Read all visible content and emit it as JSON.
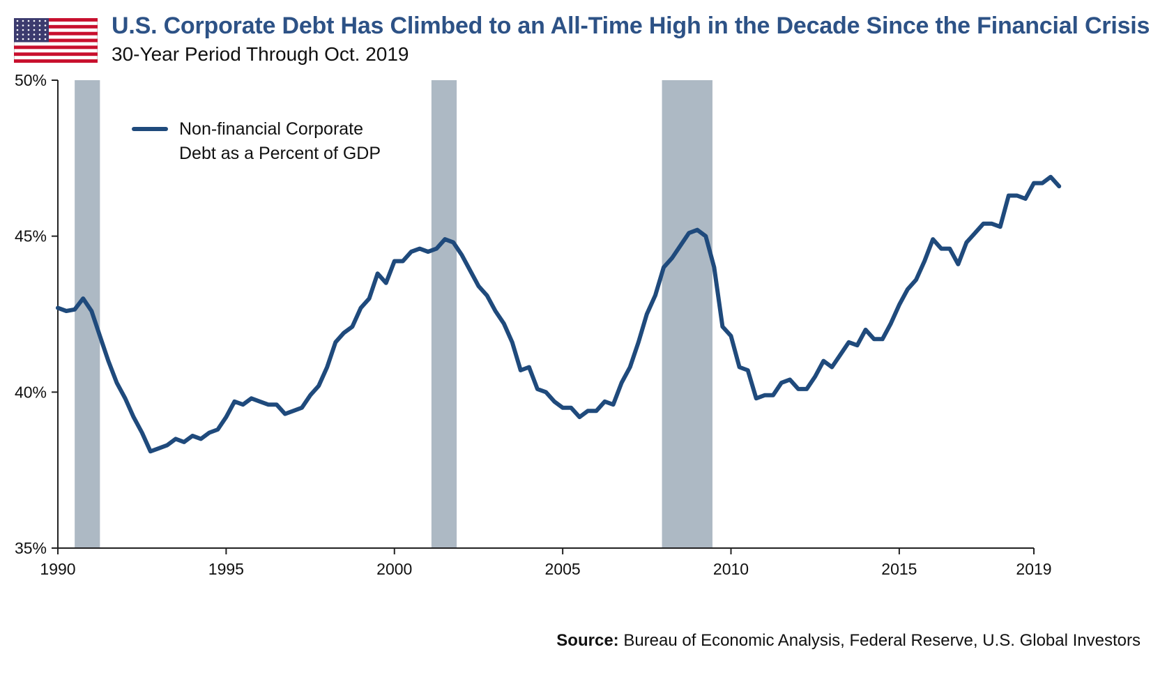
{
  "header": {
    "title": "U.S. Corporate Debt Has Climbed to an All-Time High in the Decade Since the Financial Crisis",
    "subtitle": "30-Year Period Through Oct. 2019"
  },
  "footer": {
    "source_label": "Source:",
    "source_text": "Bureau of Economic Analysis, Federal Reserve, U.S. Global Investors"
  },
  "colors": {
    "line": "#1f4a7c",
    "recession": "#adb9c4",
    "title": "#2d5286",
    "flag_red": "#c8102e",
    "flag_blue": "#3c3b6e"
  },
  "chart_data": {
    "type": "line",
    "xlim": [
      1990,
      2019
    ],
    "ylim": [
      35,
      50
    ],
    "x_ticks": [
      1990,
      1995,
      2000,
      2005,
      2010,
      2015,
      2019
    ],
    "x_tick_labels": [
      "1990",
      "1995",
      "2000",
      "2005",
      "2010",
      "2015",
      "2019"
    ],
    "y_ticks": [
      35,
      40,
      45,
      50
    ],
    "y_tick_labels": [
      "35%",
      "40%",
      "45%",
      "50%"
    ],
    "legend": {
      "placement": "top-left",
      "lines": [
        "Non-financial Corporate",
        "Debt as a Percent of GDP"
      ]
    },
    "recessions": [
      [
        1990.5,
        1991.25
      ],
      [
        2001.1,
        2001.85
      ],
      [
        2007.95,
        2009.45
      ]
    ],
    "series": [
      {
        "values": [
          [
            1990.0,
            42.7
          ],
          [
            1990.25,
            42.6
          ],
          [
            1990.5,
            42.65
          ],
          [
            1990.75,
            43.0
          ],
          [
            1991.0,
            42.6
          ],
          [
            1991.25,
            41.8
          ],
          [
            1991.5,
            41.0
          ],
          [
            1991.75,
            40.3
          ],
          [
            1992.0,
            39.8
          ],
          [
            1992.25,
            39.2
          ],
          [
            1992.5,
            38.7
          ],
          [
            1992.75,
            38.1
          ],
          [
            1993.0,
            38.2
          ],
          [
            1993.25,
            38.3
          ],
          [
            1993.5,
            38.5
          ],
          [
            1993.75,
            38.4
          ],
          [
            1994.0,
            38.6
          ],
          [
            1994.25,
            38.5
          ],
          [
            1994.5,
            38.7
          ],
          [
            1994.75,
            38.8
          ],
          [
            1995.0,
            39.2
          ],
          [
            1995.25,
            39.7
          ],
          [
            1995.5,
            39.6
          ],
          [
            1995.75,
            39.8
          ],
          [
            1996.0,
            39.7
          ],
          [
            1996.25,
            39.6
          ],
          [
            1996.5,
            39.6
          ],
          [
            1996.75,
            39.3
          ],
          [
            1997.0,
            39.4
          ],
          [
            1997.25,
            39.5
          ],
          [
            1997.5,
            39.9
          ],
          [
            1997.75,
            40.2
          ],
          [
            1998.0,
            40.8
          ],
          [
            1998.25,
            41.6
          ],
          [
            1998.5,
            41.9
          ],
          [
            1998.75,
            42.1
          ],
          [
            1999.0,
            42.7
          ],
          [
            1999.25,
            43.0
          ],
          [
            1999.5,
            43.8
          ],
          [
            1999.75,
            43.5
          ],
          [
            2000.0,
            44.2
          ],
          [
            2000.25,
            44.2
          ],
          [
            2000.5,
            44.5
          ],
          [
            2000.75,
            44.6
          ],
          [
            2001.0,
            44.5
          ],
          [
            2001.25,
            44.6
          ],
          [
            2001.5,
            44.9
          ],
          [
            2001.75,
            44.8
          ],
          [
            2002.0,
            44.4
          ],
          [
            2002.25,
            43.9
          ],
          [
            2002.5,
            43.4
          ],
          [
            2002.75,
            43.1
          ],
          [
            2003.0,
            42.6
          ],
          [
            2003.25,
            42.2
          ],
          [
            2003.5,
            41.6
          ],
          [
            2003.75,
            40.7
          ],
          [
            2004.0,
            40.8
          ],
          [
            2004.25,
            40.1
          ],
          [
            2004.5,
            40.0
          ],
          [
            2004.75,
            39.7
          ],
          [
            2005.0,
            39.5
          ],
          [
            2005.25,
            39.5
          ],
          [
            2005.5,
            39.2
          ],
          [
            2005.75,
            39.4
          ],
          [
            2006.0,
            39.4
          ],
          [
            2006.25,
            39.7
          ],
          [
            2006.5,
            39.6
          ],
          [
            2006.75,
            40.3
          ],
          [
            2007.0,
            40.8
          ],
          [
            2007.25,
            41.6
          ],
          [
            2007.5,
            42.5
          ],
          [
            2007.75,
            43.1
          ],
          [
            2008.0,
            44.0
          ],
          [
            2008.25,
            44.3
          ],
          [
            2008.5,
            44.7
          ],
          [
            2008.75,
            45.1
          ],
          [
            2009.0,
            45.2
          ],
          [
            2009.25,
            45.0
          ],
          [
            2009.5,
            44.0
          ],
          [
            2009.75,
            42.1
          ],
          [
            2010.0,
            41.8
          ],
          [
            2010.25,
            40.8
          ],
          [
            2010.5,
            40.7
          ],
          [
            2010.75,
            39.8
          ],
          [
            2011.0,
            39.9
          ],
          [
            2011.25,
            39.9
          ],
          [
            2011.5,
            40.3
          ],
          [
            2011.75,
            40.4
          ],
          [
            2012.0,
            40.1
          ],
          [
            2012.25,
            40.1
          ],
          [
            2012.5,
            40.5
          ],
          [
            2012.75,
            41.0
          ],
          [
            2013.0,
            40.8
          ],
          [
            2013.25,
            41.2
          ],
          [
            2013.5,
            41.6
          ],
          [
            2013.75,
            41.5
          ],
          [
            2014.0,
            42.0
          ],
          [
            2014.25,
            41.7
          ],
          [
            2014.5,
            41.7
          ],
          [
            2014.75,
            42.2
          ],
          [
            2015.0,
            42.8
          ],
          [
            2015.25,
            43.3
          ],
          [
            2015.5,
            43.6
          ],
          [
            2015.75,
            44.2
          ],
          [
            2016.0,
            44.9
          ],
          [
            2016.25,
            44.6
          ],
          [
            2016.5,
            44.6
          ],
          [
            2016.75,
            44.1
          ],
          [
            2017.0,
            44.8
          ],
          [
            2017.25,
            45.1
          ],
          [
            2017.5,
            45.4
          ],
          [
            2017.75,
            45.4
          ],
          [
            2018.0,
            45.3
          ],
          [
            2018.25,
            46.3
          ],
          [
            2018.5,
            46.3
          ],
          [
            2018.75,
            46.2
          ],
          [
            2019.0,
            46.7
          ],
          [
            2019.25,
            46.7
          ],
          [
            2019.5,
            46.9
          ],
          [
            2019.75,
            46.6
          ]
        ]
      }
    ]
  }
}
